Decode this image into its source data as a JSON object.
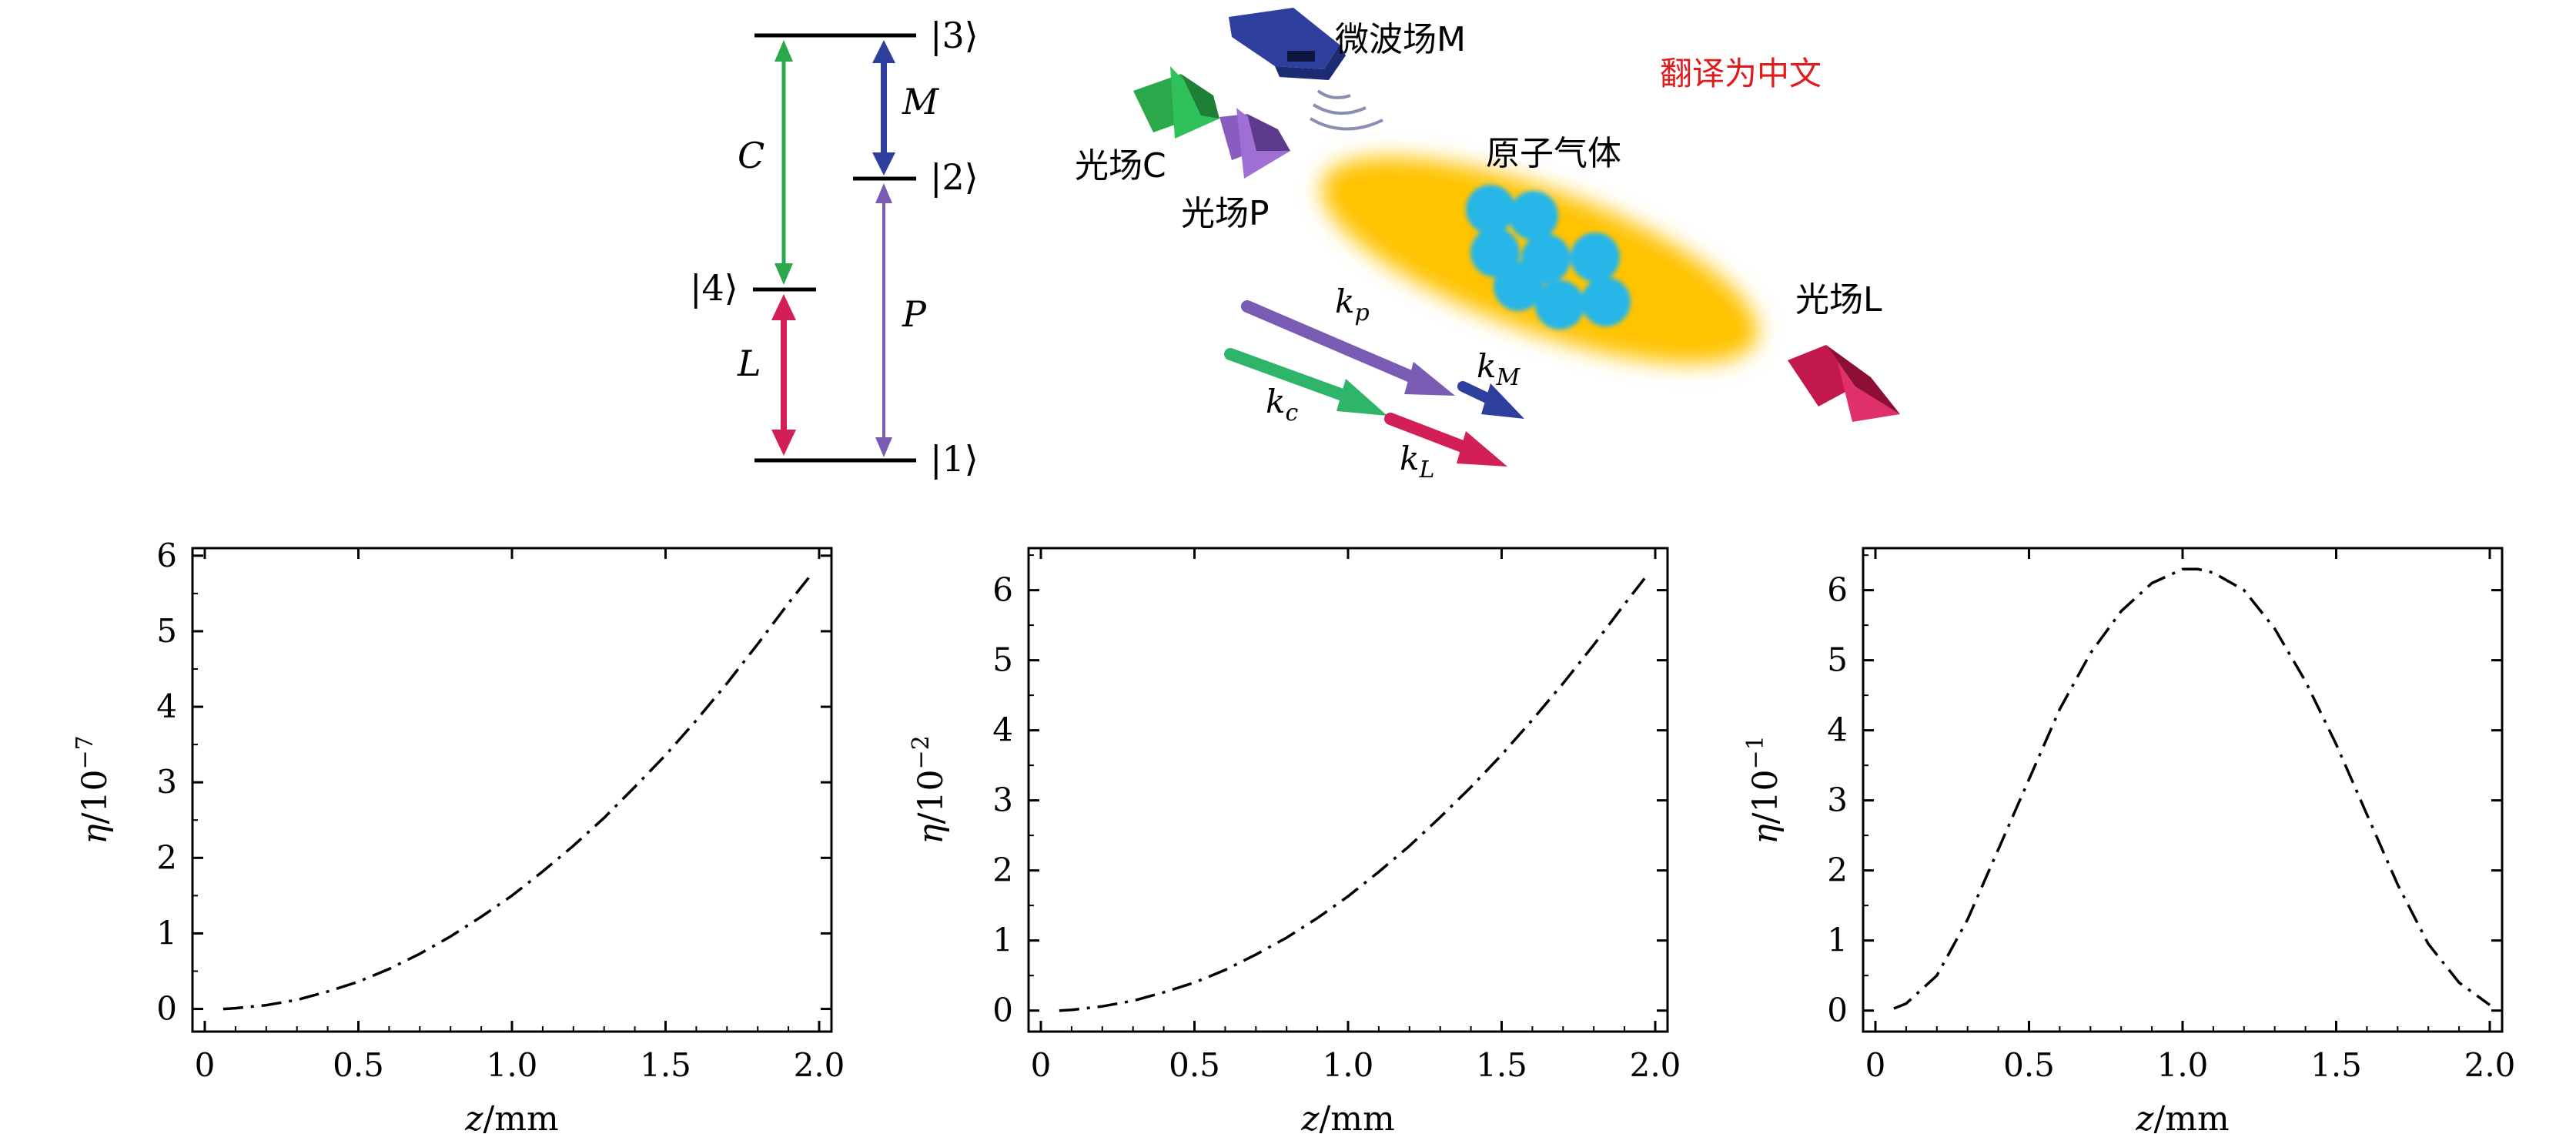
{
  "figure_note": "翻译为中文",
  "level_diagram": {
    "levels": {
      "l1": "|1⟩",
      "l2": "|2⟩",
      "l3": "|3⟩",
      "l4": "|4⟩"
    },
    "transitions": {
      "C": "C",
      "M": "M",
      "P": "P",
      "L": "L"
    }
  },
  "setup": {
    "microwave_label": "微波场M",
    "field_c_label": "光场C",
    "field_p_label": "光场P",
    "atom_gas_label": "原子气体",
    "field_l_label": "光场L",
    "wavevectors": {
      "kp": "k_p",
      "kc": "k_c",
      "kM": "k_M",
      "kL": "k_L"
    }
  },
  "colors": {
    "coupling_green": "#2aa84a",
    "microwave_blue": "#2e3f9e",
    "probe_purple": "#7a5cb4",
    "generated_red": "#d21f55",
    "gas_yellow": "#ffc300",
    "atom_cyan": "#26b6e8"
  },
  "chart_data": [
    {
      "type": "line",
      "xlabel": "z/mm",
      "ylabel": "η/10⁻⁷",
      "xlim": [
        0,
        2.0
      ],
      "ylim": [
        -0.3,
        6.1
      ],
      "xticks": [
        "0",
        "0.5",
        "1.0",
        "1.5",
        "2.0"
      ],
      "yticks": [
        "0",
        "1",
        "2",
        "3",
        "4",
        "5",
        "6"
      ],
      "line_style": "dash-dot",
      "x": [
        0.06,
        0.1,
        0.2,
        0.3,
        0.4,
        0.5,
        0.6,
        0.7,
        0.8,
        0.9,
        1.0,
        1.1,
        1.2,
        1.3,
        1.4,
        1.5,
        1.6,
        1.7,
        1.8,
        1.9,
        1.98
      ],
      "y": [
        0.0,
        0.01,
        0.05,
        0.12,
        0.23,
        0.36,
        0.53,
        0.73,
        0.96,
        1.22,
        1.5,
        1.82,
        2.16,
        2.53,
        2.94,
        3.36,
        3.82,
        4.31,
        4.83,
        5.37,
        5.78
      ]
    },
    {
      "type": "line",
      "xlabel": "z/mm",
      "ylabel": "η/10⁻²",
      "xlim": [
        0,
        2.0
      ],
      "ylim": [
        -0.3,
        6.6
      ],
      "xticks": [
        "0",
        "0.5",
        "1.0",
        "1.5",
        "2.0"
      ],
      "yticks": [
        "0",
        "1",
        "2",
        "3",
        "4",
        "5",
        "6"
      ],
      "line_style": "dash-dot",
      "x": [
        0.06,
        0.1,
        0.2,
        0.3,
        0.4,
        0.5,
        0.6,
        0.7,
        0.8,
        0.9,
        1.0,
        1.1,
        1.2,
        1.3,
        1.4,
        1.5,
        1.6,
        1.7,
        1.8,
        1.9,
        1.98
      ],
      "y": [
        0.0,
        0.01,
        0.06,
        0.14,
        0.26,
        0.4,
        0.58,
        0.8,
        1.04,
        1.32,
        1.63,
        1.98,
        2.35,
        2.76,
        3.19,
        3.65,
        4.15,
        4.67,
        5.22,
        5.8,
        6.25
      ]
    },
    {
      "type": "line",
      "xlabel": "z/mm",
      "ylabel": "η/10⁻¹",
      "xlim": [
        0,
        2.0
      ],
      "ylim": [
        -0.3,
        6.6
      ],
      "xticks": [
        "0",
        "0.5",
        "1.0",
        "1.5",
        "2.0"
      ],
      "yticks": [
        "0",
        "1",
        "2",
        "3",
        "4",
        "5",
        "6"
      ],
      "line_style": "dash-dot",
      "x": [
        0.06,
        0.1,
        0.2,
        0.3,
        0.4,
        0.5,
        0.6,
        0.7,
        0.8,
        0.9,
        1.0,
        1.05,
        1.1,
        1.2,
        1.3,
        1.4,
        1.5,
        1.6,
        1.7,
        1.8,
        1.9,
        2.0
      ],
      "y": [
        0.03,
        0.1,
        0.5,
        1.3,
        2.3,
        3.3,
        4.3,
        5.1,
        5.7,
        6.1,
        6.3,
        6.3,
        6.25,
        6.0,
        5.45,
        4.7,
        3.8,
        2.8,
        1.8,
        0.95,
        0.4,
        0.08
      ]
    }
  ]
}
